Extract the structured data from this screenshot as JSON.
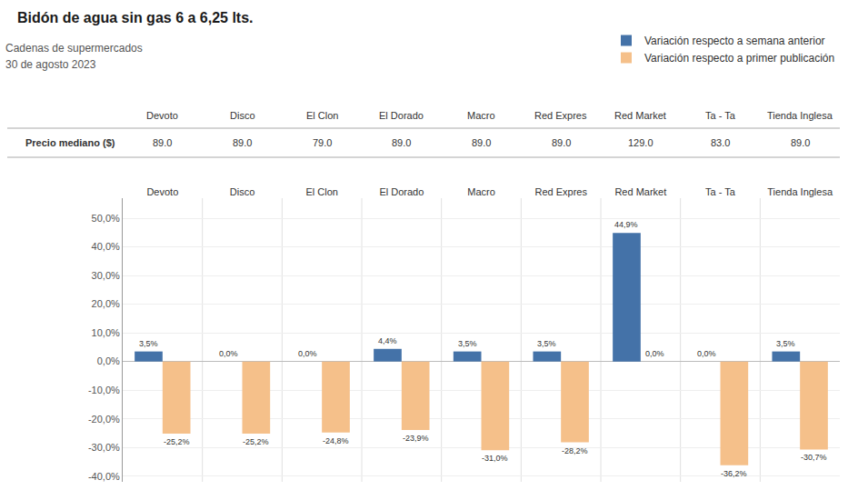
{
  "chart_data": {
    "type": "bar",
    "title": "Bidón de agua sin gas 6 a 6,25 lts.",
    "subtitle": [
      "Cadenas de supermercados",
      "30 de agosto 2023"
    ],
    "categories": [
      "Devoto",
      "Disco",
      "El Clon",
      "El Dorado",
      "Macro",
      "Red Expres",
      "Red Market",
      "Ta - Ta",
      "Tienda Inglesa"
    ],
    "series": [
      {
        "name": "Variación respecto a semana anterior",
        "color": "#4472a8",
        "values": [
          3.5,
          0.0,
          0.0,
          4.4,
          3.5,
          3.5,
          44.9,
          0.0,
          3.5
        ],
        "value_labels": [
          "3,5%",
          "0,0%",
          "0,0%",
          "4,4%",
          "3,5%",
          "3,5%",
          "44,9%",
          "0,0%",
          "3,5%"
        ]
      },
      {
        "name": "Variación respecto a primer publicación",
        "color": "#f5c08a",
        "values": [
          -25.2,
          -25.2,
          -24.8,
          -23.9,
          -31.0,
          -28.2,
          0.0,
          -36.2,
          -30.7
        ],
        "value_labels": [
          "-25,2%",
          "-25,2%",
          "-24,8%",
          "-23,9%",
          "-31,0%",
          "-28,2%",
          "0,0%",
          "-36,2%",
          "-30,7%"
        ]
      }
    ],
    "ylim": [
      -42,
      57
    ],
    "yticks": [
      {
        "value": -40,
        "label": "-40,0%"
      },
      {
        "value": -30,
        "label": "-30,0%"
      },
      {
        "value": -20,
        "label": "-20,0%"
      },
      {
        "value": -10,
        "label": "-10,0%"
      },
      {
        "value": 0,
        "label": "0,0%"
      },
      {
        "value": 10,
        "label": "10,0%"
      },
      {
        "value": 20,
        "label": "20,0%"
      },
      {
        "value": 30,
        "label": "30,0%"
      },
      {
        "value": 40,
        "label": "40,0%"
      },
      {
        "value": 50,
        "label": "50,0%"
      }
    ],
    "grid": true,
    "legend": "upper right",
    "data_labels": true,
    "price_row": {
      "label": "Precio mediano ($)",
      "values": [
        89.0,
        89.0,
        79.0,
        89.0,
        89.0,
        89.0,
        129.0,
        83.0,
        89.0
      ],
      "value_labels": [
        "89.0",
        "89.0",
        "79.0",
        "89.0",
        "89.0",
        "89.0",
        "129.0",
        "83.0",
        "89.0"
      ]
    }
  }
}
